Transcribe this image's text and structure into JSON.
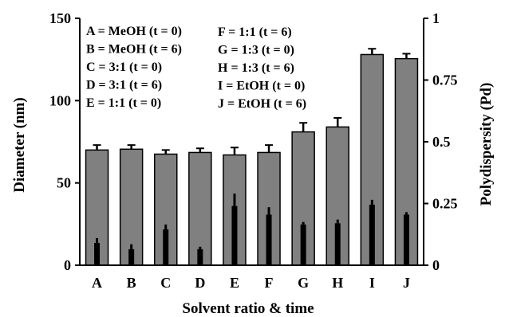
{
  "chart_data": {
    "type": "bar",
    "title": "",
    "xlabel": "Solvent ratio & time",
    "ylabel": "Diameter (nm)",
    "y2label": "Polydispersity (Pd)",
    "categories": [
      "A",
      "B",
      "C",
      "D",
      "E",
      "F",
      "G",
      "H",
      "I",
      "J"
    ],
    "ylim": [
      0,
      150
    ],
    "y_ticks": [
      "0",
      "50",
      "100",
      "150"
    ],
    "y2lim": [
      0,
      1
    ],
    "y2_ticks": [
      "0",
      "0.25",
      "0.5",
      "0.75",
      "1"
    ],
    "grid": false,
    "series": [
      {
        "axis": "left",
        "color": "#808080",
        "values": [
          70,
          70.5,
          67.5,
          68.5,
          67,
          68.5,
          81,
          84,
          128,
          125.5
        ],
        "errors": [
          3,
          2.5,
          2.5,
          2.5,
          4.5,
          4.5,
          5.5,
          5.5,
          3.5,
          3
        ]
      },
      {
        "axis": "right",
        "color": "#000000",
        "values": [
          0.09,
          0.065,
          0.145,
          0.065,
          0.24,
          0.205,
          0.165,
          0.17,
          0.245,
          0.205
        ],
        "errors": [
          0.02,
          0.02,
          0.02,
          0.01,
          0.05,
          0.03,
          0.01,
          0.015,
          0.02,
          0.01
        ]
      }
    ],
    "legend": {
      "placement": "top-left",
      "col1": [
        "A = MeOH (t = 0)",
        "B = MeOH (t = 6)",
        "C = 3:1 (t = 0)",
        "D = 3:1 (t = 6)",
        "E = 1:1 (t = 0)"
      ],
      "col2": [
        "F = 1:1 (t = 6)",
        "G = 1:3 (t = 0)",
        "H = 1:3 (t = 6)",
        "I = EtOH (t = 0)",
        "J = EtOH (t = 6)"
      ]
    }
  }
}
